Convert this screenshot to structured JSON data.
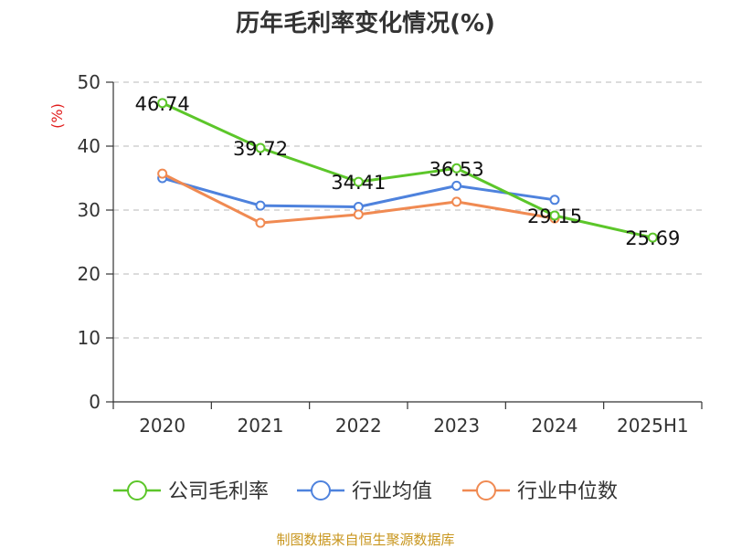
{
  "chart_data": {
    "type": "line",
    "title": "历年毛利率变化情况(%)",
    "ylabel": "(%)",
    "xlabel": "",
    "categories": [
      "2020",
      "2021",
      "2022",
      "2023",
      "2024",
      "2025H1"
    ],
    "yticks": [
      "0",
      "10",
      "20",
      "30",
      "40",
      "50"
    ],
    "ylim": [
      0,
      50
    ],
    "grid": "horizontal dashed",
    "legend_position": "bottom",
    "series": [
      {
        "name": "公司毛利率",
        "color": "#5cc62a",
        "values": [
          46.74,
          39.72,
          34.41,
          36.53,
          29.15,
          25.69
        ],
        "labels": [
          "46.74",
          "39.72",
          "34.41",
          "36.53",
          "29.15",
          "25.69"
        ]
      },
      {
        "name": "行业均值",
        "color": "#4e82dd",
        "values": [
          35.0,
          30.7,
          30.5,
          33.8,
          31.6,
          null
        ]
      },
      {
        "name": "行业中位数",
        "color": "#f08a52",
        "values": [
          35.7,
          28.0,
          29.3,
          31.3,
          28.7,
          null
        ]
      }
    ],
    "source": "制图数据来自恒生聚源数据库"
  }
}
